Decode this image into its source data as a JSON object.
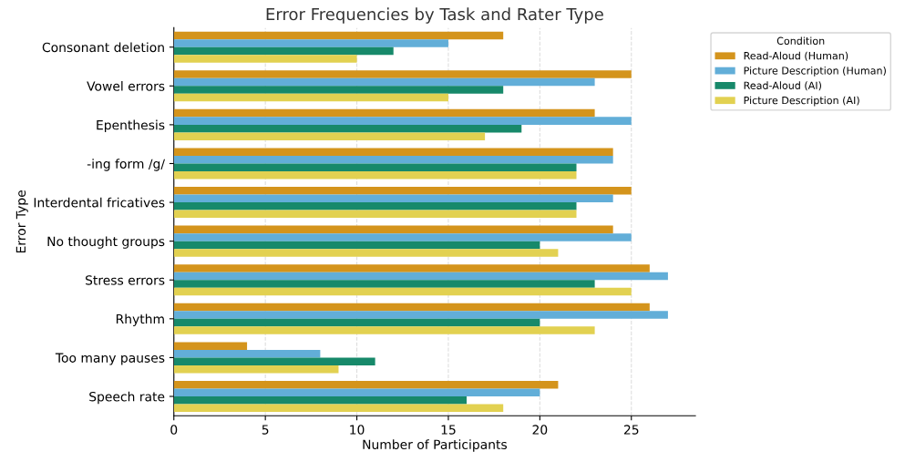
{
  "chart_data": {
    "type": "bar",
    "orientation": "horizontal",
    "title": "Error Frequencies by Task and Rater Type",
    "xlabel": "Number of Participants",
    "ylabel": "Error Type",
    "legend_title": "Condition",
    "categories": [
      "Consonant deletion",
      "Vowel errors",
      "Epenthesis",
      "-ing form /g/",
      "Interdental fricatives",
      "No thought groups",
      "Stress errors",
      "Rhythm",
      "Too many pauses",
      "Speech rate"
    ],
    "series": [
      {
        "name": "Read-Aloud (Human)",
        "color": "#d4941c",
        "values": [
          18,
          25,
          23,
          24,
          25,
          24,
          26,
          26,
          4,
          21
        ]
      },
      {
        "name": "Picture Description (Human)",
        "color": "#62aed8",
        "values": [
          15,
          23,
          25,
          24,
          24,
          25,
          27,
          27,
          8,
          20
        ]
      },
      {
        "name": "Read-Aloud (AI)",
        "color": "#17896a",
        "values": [
          12,
          18,
          19,
          22,
          22,
          20,
          23,
          20,
          11,
          16
        ]
      },
      {
        "name": "Picture Description (AI)",
        "color": "#e2d151",
        "values": [
          10,
          15,
          17,
          22,
          22,
          21,
          25,
          23,
          9,
          18
        ]
      }
    ],
    "xlim": [
      0,
      28.5
    ],
    "xticks": [
      0,
      5,
      10,
      15,
      20,
      25
    ],
    "grid": "x",
    "legend": "top right"
  }
}
